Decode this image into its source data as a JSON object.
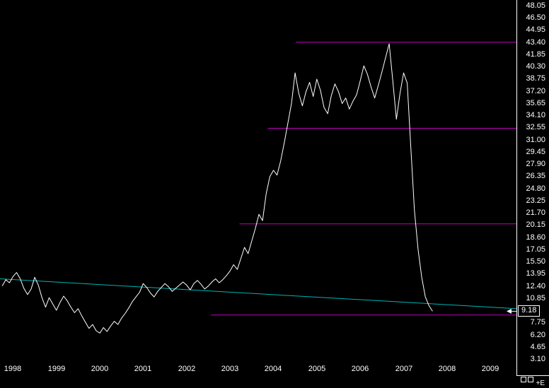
{
  "colors": {
    "background": "#000000",
    "price_line": "#ffffff",
    "level_line": "#c400c4",
    "trendline": "#00b4b4",
    "axis_text": "#ffffff"
  },
  "axis": {
    "y_labels": [
      "48.05",
      "46.50",
      "44.95",
      "43.40",
      "41.85",
      "40.30",
      "38.75",
      "37.20",
      "35.65",
      "34.10",
      "32.55",
      "31.00",
      "29.45",
      "27.90",
      "26.35",
      "24.80",
      "23.25",
      "21.70",
      "20.15",
      "18.60",
      "17.05",
      "15.50",
      "13.95",
      "12.40",
      "10.85",
      "7.75",
      "6.20",
      "4.65",
      "3.10"
    ],
    "x_labels": [
      "1998",
      "1999",
      "2000",
      "2001",
      "2002",
      "2003",
      "2004",
      "2005",
      "2006",
      "2007",
      "2008",
      "2009"
    ],
    "last_price": "9.18"
  },
  "statusbar": {
    "zoom_label": "+E"
  },
  "chart_data": {
    "type": "line",
    "title": "",
    "xlabel": "",
    "ylabel": "",
    "x_range": [
      1997.7,
      2009.6
    ],
    "y_range": [
      3.1,
      48.05
    ],
    "y_tick_step": 1.55,
    "x_ticks": [
      1998,
      1999,
      2000,
      2001,
      2002,
      2003,
      2004,
      2005,
      2006,
      2007,
      2008,
      2009
    ],
    "grid": false,
    "legend": "none",
    "last_value": 9.18,
    "series": [
      {
        "name": "price",
        "color": "#ffffff",
        "start_year": 1997.75,
        "interval_years": 0.0833333,
        "values": [
          12.4,
          13.2,
          12.8,
          13.6,
          14.1,
          13.3,
          12.1,
          11.3,
          12.0,
          13.5,
          12.5,
          10.9,
          9.7,
          10.9,
          10.1,
          9.3,
          10.3,
          11.1,
          10.5,
          9.7,
          9.0,
          9.5,
          8.6,
          7.8,
          7.0,
          7.5,
          6.7,
          6.4,
          7.1,
          6.6,
          7.3,
          7.9,
          7.5,
          8.3,
          8.9,
          9.6,
          10.4,
          11.0,
          11.6,
          12.7,
          12.2,
          11.5,
          11.0,
          11.7,
          12.2,
          12.7,
          12.3,
          11.7,
          12.1,
          12.5,
          12.9,
          12.5,
          11.9,
          12.7,
          13.1,
          12.6,
          12.0,
          12.4,
          12.9,
          13.3,
          12.8,
          13.2,
          13.7,
          14.3,
          15.1,
          14.5,
          15.9,
          17.3,
          16.5,
          18.1,
          19.7,
          21.5,
          20.7,
          24.1,
          26.3,
          27.1,
          26.5,
          28.3,
          30.6,
          33.1,
          35.6,
          39.5,
          36.9,
          35.3,
          37.1,
          38.3,
          36.5,
          38.7,
          37.3,
          35.1,
          34.3,
          36.6,
          38.1,
          37.1,
          35.6,
          36.3,
          34.9,
          35.9,
          36.7,
          38.5,
          40.4,
          39.3,
          37.7,
          36.3,
          37.9,
          39.6,
          41.4,
          43.2,
          38.5,
          33.6,
          36.9,
          39.5,
          38.2,
          30.0,
          22.0,
          17.0,
          13.5,
          11.0,
          9.9,
          9.18
        ]
      }
    ],
    "levels": [
      {
        "value": 43.4,
        "from_year": 2004.52,
        "color": "#c400c4"
      },
      {
        "value": 32.45,
        "from_year": 2003.87,
        "color": "#c400c4"
      },
      {
        "value": 20.3,
        "from_year": 2003.22,
        "color": "#c400c4"
      },
      {
        "value": 8.7,
        "from_year": 2002.56,
        "color": "#c400c4"
      }
    ],
    "trendline": {
      "color": "#00b4b4",
      "points": [
        [
          1997.7,
          13.3
        ],
        [
          2009.6,
          9.5
        ]
      ]
    }
  }
}
